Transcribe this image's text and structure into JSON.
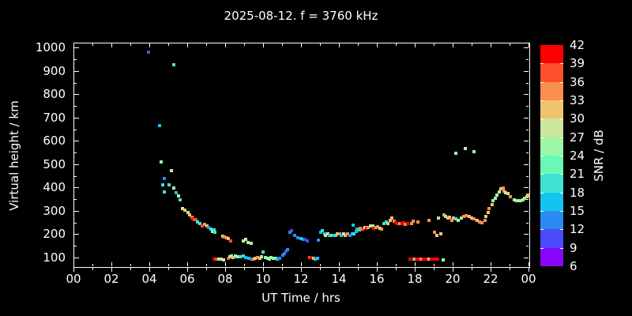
{
  "title": "2025-08-12. f = 3760 kHz",
  "colors": {
    "background": "#000000",
    "axis": "#ffffff",
    "text": "#ffffff"
  },
  "chart_data": {
    "type": "scatter",
    "title": "2025-08-12. f = 3760 kHz",
    "xlabel": "UT Time / hrs",
    "ylabel": "Virtual height / km",
    "xlim": [
      0,
      24
    ],
    "ylim": [
      62,
      1022
    ],
    "grid": false,
    "xtick_labels": [
      "00",
      "02",
      "04",
      "06",
      "08",
      "10",
      "12",
      "14",
      "16",
      "18",
      "20",
      "22",
      "00"
    ],
    "xtick_values": [
      0,
      2,
      4,
      6,
      8,
      10,
      12,
      14,
      16,
      18,
      20,
      22,
      24
    ],
    "xminor_values": [
      1,
      3,
      5,
      7,
      9,
      11,
      13,
      15,
      17,
      19,
      21,
      23
    ],
    "ytick_values": [
      100,
      200,
      300,
      400,
      500,
      600,
      700,
      800,
      900,
      1000
    ],
    "yminor_values": [
      150,
      250,
      350,
      450,
      550,
      650,
      750,
      850,
      950
    ],
    "colorbar": {
      "label": "SNR / dB",
      "tick_values": [
        6,
        9,
        12,
        15,
        18,
        21,
        24,
        27,
        30,
        33,
        36,
        39,
        42
      ],
      "range": [
        6,
        42
      ],
      "bin_colors": [
        "#8a05fb",
        "#4b4bfa",
        "#2b8bf1",
        "#13c5ee",
        "#3fe2d4",
        "#69f9b4",
        "#9cf7a6",
        "#cce79b",
        "#f0c46f",
        "#fb8e51",
        "#fd4f2c",
        "#fb0200"
      ]
    },
    "points_format": "[UT_hours, virtual_height_km, snr_bin_index(0=6-9dB .. 11=39-42dB)]",
    "points": [
      [
        3.93,
        986,
        1
      ],
      [
        4.51,
        670,
        3
      ],
      [
        4.6,
        513,
        6
      ],
      [
        4.68,
        415,
        4
      ],
      [
        4.76,
        442,
        2
      ],
      [
        4.76,
        384,
        4
      ],
      [
        5.01,
        415,
        4
      ],
      [
        5.14,
        476,
        7
      ],
      [
        5.26,
        932,
        4
      ],
      [
        5.26,
        401,
        6
      ],
      [
        5.39,
        381,
        3
      ],
      [
        5.51,
        367,
        7
      ],
      [
        5.59,
        350,
        4
      ],
      [
        5.72,
        313,
        7
      ],
      [
        5.84,
        306,
        8
      ],
      [
        6.01,
        296,
        6
      ],
      [
        6.09,
        285,
        8
      ],
      [
        6.22,
        275,
        9
      ],
      [
        6.26,
        268,
        11
      ],
      [
        6.34,
        265,
        10
      ],
      [
        6.43,
        265,
        10
      ],
      [
        6.51,
        255,
        4
      ],
      [
        6.63,
        248,
        4
      ],
      [
        6.76,
        238,
        10
      ],
      [
        6.88,
        245,
        9
      ],
      [
        7.01,
        238,
        8
      ],
      [
        7.09,
        231,
        2
      ],
      [
        7.22,
        224,
        4
      ],
      [
        7.3,
        214,
        6
      ],
      [
        7.38,
        221,
        4
      ],
      [
        7.43,
        211,
        4
      ],
      [
        7.38,
        95,
        11
      ],
      [
        7.51,
        95,
        10
      ],
      [
        7.63,
        95,
        7
      ],
      [
        7.76,
        95,
        7
      ],
      [
        7.88,
        92,
        7
      ],
      [
        7.84,
        194,
        8
      ],
      [
        7.92,
        190,
        9
      ],
      [
        8.05,
        187,
        9
      ],
      [
        8.13,
        184,
        8
      ],
      [
        8.26,
        173,
        10
      ],
      [
        8.92,
        173,
        7
      ],
      [
        9.05,
        180,
        7
      ],
      [
        9.17,
        166,
        6
      ],
      [
        9.34,
        163,
        6
      ],
      [
        8.13,
        98,
        10
      ],
      [
        8.21,
        105,
        6
      ],
      [
        8.3,
        109,
        6
      ],
      [
        8.38,
        102,
        8
      ],
      [
        8.51,
        109,
        6
      ],
      [
        8.59,
        105,
        6
      ],
      [
        8.76,
        105,
        4
      ],
      [
        8.92,
        109,
        4
      ],
      [
        9.05,
        102,
        3
      ],
      [
        9.21,
        98,
        3
      ],
      [
        9.34,
        95,
        2
      ],
      [
        9.46,
        95,
        9
      ],
      [
        9.55,
        98,
        8
      ],
      [
        9.67,
        102,
        9
      ],
      [
        9.8,
        98,
        8
      ],
      [
        9.88,
        105,
        6
      ],
      [
        9.96,
        126,
        4
      ],
      [
        10.09,
        102,
        6
      ],
      [
        10.21,
        98,
        6
      ],
      [
        10.3,
        95,
        6
      ],
      [
        10.38,
        102,
        6
      ],
      [
        10.5,
        98,
        6
      ],
      [
        10.63,
        98,
        6
      ],
      [
        10.71,
        95,
        3
      ],
      [
        10.84,
        98,
        2
      ],
      [
        11.0,
        112,
        2
      ],
      [
        11.09,
        119,
        2
      ],
      [
        11.17,
        129,
        1
      ],
      [
        11.25,
        136,
        2
      ],
      [
        11.38,
        211,
        2
      ],
      [
        11.46,
        218,
        1
      ],
      [
        11.63,
        197,
        2
      ],
      [
        11.79,
        187,
        2
      ],
      [
        11.96,
        184,
        3
      ],
      [
        12.08,
        182,
        3
      ],
      [
        12.17,
        182,
        1
      ],
      [
        12.29,
        173,
        1
      ],
      [
        12.87,
        178,
        2
      ],
      [
        13.0,
        211,
        3
      ],
      [
        13.08,
        218,
        4
      ],
      [
        13.21,
        204,
        3
      ],
      [
        13.25,
        199,
        6
      ],
      [
        12.42,
        102,
        10
      ],
      [
        12.5,
        102,
        11
      ],
      [
        12.62,
        98,
        8
      ],
      [
        12.71,
        95,
        3
      ],
      [
        12.83,
        98,
        3
      ],
      [
        13.37,
        204,
        7
      ],
      [
        13.46,
        199,
        3
      ],
      [
        13.58,
        197,
        8
      ],
      [
        13.66,
        199,
        3
      ],
      [
        13.79,
        197,
        4
      ],
      [
        13.87,
        204,
        8
      ],
      [
        14.0,
        204,
        9
      ],
      [
        14.08,
        199,
        3
      ],
      [
        14.21,
        204,
        7
      ],
      [
        14.29,
        199,
        8
      ],
      [
        14.41,
        204,
        9
      ],
      [
        14.54,
        197,
        2
      ],
      [
        14.66,
        204,
        3
      ],
      [
        14.7,
        241,
        3
      ],
      [
        14.75,
        206,
        4
      ],
      [
        14.87,
        214,
        3
      ],
      [
        14.91,
        224,
        3
      ],
      [
        15.04,
        221,
        4
      ],
      [
        15.08,
        228,
        9
      ],
      [
        15.2,
        224,
        10
      ],
      [
        15.33,
        231,
        7
      ],
      [
        15.41,
        228,
        11
      ],
      [
        15.49,
        231,
        9
      ],
      [
        15.62,
        238,
        7
      ],
      [
        15.74,
        238,
        6
      ],
      [
        15.79,
        228,
        11
      ],
      [
        15.91,
        231,
        9
      ],
      [
        16.0,
        234,
        9
      ],
      [
        16.12,
        228,
        6
      ],
      [
        16.2,
        224,
        9
      ],
      [
        16.33,
        248,
        4
      ],
      [
        16.45,
        255,
        4
      ],
      [
        16.54,
        248,
        8
      ],
      [
        16.66,
        262,
        8
      ],
      [
        16.74,
        272,
        8
      ],
      [
        16.87,
        258,
        9
      ],
      [
        16.95,
        251,
        11
      ],
      [
        17.03,
        248,
        11
      ],
      [
        17.16,
        248,
        9
      ],
      [
        17.28,
        248,
        11
      ],
      [
        17.37,
        251,
        11
      ],
      [
        17.45,
        244,
        9
      ],
      [
        17.57,
        248,
        11
      ],
      [
        17.78,
        248,
        9
      ],
      [
        17.87,
        258,
        9
      ],
      [
        18.12,
        255,
        9
      ],
      [
        18.7,
        262,
        9
      ],
      [
        17.7,
        95,
        11
      ],
      [
        17.91,
        95,
        9
      ],
      [
        18.08,
        95,
        11
      ],
      [
        18.2,
        95,
        11
      ],
      [
        18.28,
        95,
        9
      ],
      [
        18.41,
        95,
        11
      ],
      [
        18.53,
        95,
        11
      ],
      [
        18.7,
        95,
        8
      ],
      [
        18.82,
        95,
        11
      ],
      [
        18.95,
        95,
        11
      ],
      [
        19.07,
        95,
        11
      ],
      [
        19.16,
        95,
        11
      ],
      [
        19.45,
        92,
        6
      ],
      [
        18.99,
        211,
        9
      ],
      [
        19.11,
        199,
        8
      ],
      [
        19.32,
        206,
        8
      ],
      [
        19.2,
        272,
        6
      ],
      [
        19.49,
        285,
        9
      ],
      [
        19.57,
        279,
        6
      ],
      [
        19.7,
        272,
        8
      ],
      [
        19.78,
        275,
        8
      ],
      [
        19.91,
        262,
        9
      ],
      [
        19.99,
        272,
        8
      ],
      [
        20.11,
        268,
        4
      ],
      [
        20.24,
        262,
        6
      ],
      [
        20.41,
        272,
        6
      ],
      [
        20.53,
        279,
        9
      ],
      [
        20.66,
        282,
        9
      ],
      [
        20.82,
        279,
        8
      ],
      [
        20.95,
        272,
        8
      ],
      [
        21.07,
        268,
        9
      ],
      [
        21.24,
        262,
        8
      ],
      [
        21.36,
        255,
        9
      ],
      [
        21.49,
        251,
        9
      ],
      [
        21.65,
        262,
        9
      ],
      [
        21.7,
        279,
        8
      ],
      [
        21.82,
        296,
        8
      ],
      [
        21.86,
        313,
        9
      ],
      [
        22.03,
        330,
        8
      ],
      [
        22.07,
        347,
        6
      ],
      [
        22.2,
        357,
        6
      ],
      [
        22.28,
        370,
        7
      ],
      [
        22.4,
        384,
        6
      ],
      [
        22.49,
        398,
        8
      ],
      [
        22.61,
        401,
        9
      ],
      [
        22.65,
        387,
        9
      ],
      [
        22.74,
        381,
        7
      ],
      [
        22.86,
        377,
        7
      ],
      [
        22.99,
        364,
        9
      ],
      [
        23.19,
        350,
        7
      ],
      [
        23.32,
        347,
        6
      ],
      [
        23.4,
        347,
        6
      ],
      [
        23.53,
        347,
        6
      ],
      [
        23.65,
        350,
        6
      ],
      [
        23.73,
        357,
        6
      ],
      [
        23.86,
        364,
        6
      ],
      [
        23.9,
        370,
        8
      ],
      [
        23.94,
        367,
        8
      ],
      [
        20.11,
        551,
        6
      ],
      [
        20.61,
        571,
        7
      ],
      [
        21.07,
        558,
        6
      ]
    ]
  }
}
